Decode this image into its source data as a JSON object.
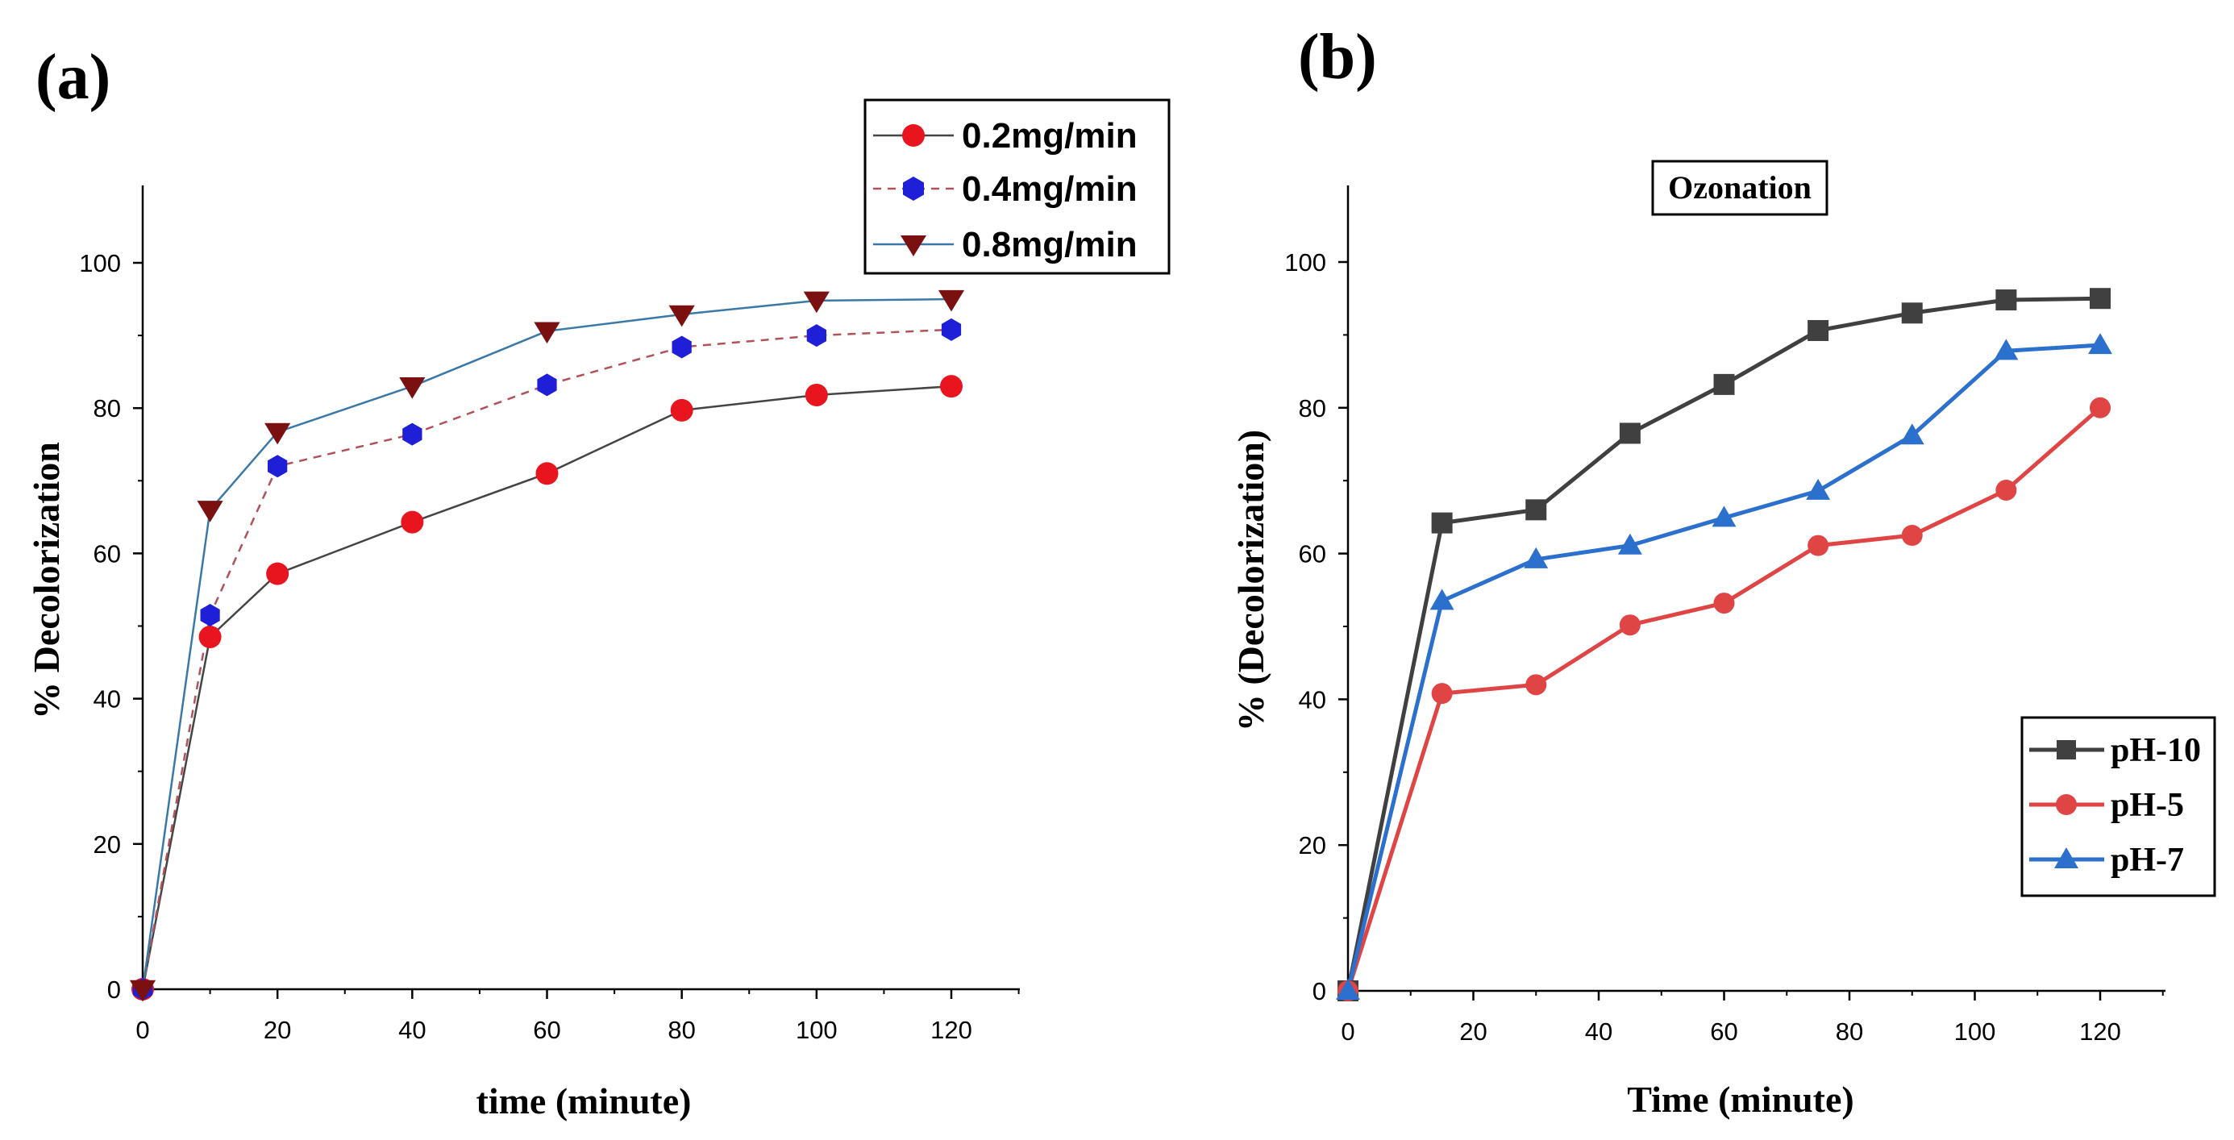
{
  "chart_data": [
    {
      "type": "line",
      "panel_label": "(a)",
      "title": "",
      "xlabel": "time (minute)",
      "ylabel": "% Decolorization",
      "xlim": [
        0,
        130
      ],
      "ylim": [
        0,
        110
      ],
      "xticks": [
        0,
        20,
        40,
        60,
        80,
        100,
        120
      ],
      "yticks": [
        0,
        20,
        40,
        60,
        80,
        100
      ],
      "x": [
        0,
        10,
        20,
        40,
        60,
        80,
        100,
        120
      ],
      "legend_position": "top-right",
      "series": [
        {
          "name": "0.2mg/min",
          "marker": "circle",
          "marker_color": "#e8141e",
          "line_color": "#444444",
          "line_style": "solid",
          "values": [
            0,
            48.5,
            57.2,
            64.3,
            71.0,
            79.7,
            81.8,
            83.0
          ]
        },
        {
          "name": "0.4mg/min",
          "marker": "hexagon",
          "marker_color": "#1f1fd8",
          "line_color": "#b0525a",
          "line_style": "dashed",
          "values": [
            0,
            51.5,
            72.0,
            76.4,
            83.2,
            88.4,
            90.0,
            90.8
          ]
        },
        {
          "name": "0.8mg/min",
          "marker": "triangle-down",
          "marker_color": "#7a1010",
          "line_color": "#3a78a8",
          "line_style": "solid",
          "values": [
            0,
            66.0,
            76.7,
            83.0,
            90.6,
            92.9,
            94.8,
            95.0
          ]
        }
      ]
    },
    {
      "type": "line",
      "panel_label": "(b)",
      "title": "Ozonation",
      "xlabel": "Time (minute)",
      "ylabel": "% (Decolorization)",
      "xlim": [
        0,
        130
      ],
      "ylim": [
        0,
        110
      ],
      "xticks": [
        0,
        20,
        40,
        60,
        80,
        100,
        120
      ],
      "yticks": [
        0,
        20,
        40,
        60,
        80,
        100
      ],
      "x": [
        0,
        15,
        30,
        45,
        60,
        75,
        90,
        105,
        120
      ],
      "legend_position": "bottom-right",
      "series": [
        {
          "name": "pH-10",
          "marker": "square",
          "marker_color": "#404040",
          "line_color": "#404040",
          "values": [
            0,
            64.2,
            66.0,
            76.5,
            83.2,
            90.6,
            93.0,
            94.8,
            95.0
          ]
        },
        {
          "name": "pH-5",
          "marker": "circle",
          "marker_color": "#e04545",
          "line_color": "#e04545",
          "values": [
            0,
            40.8,
            42.0,
            50.2,
            53.2,
            61.1,
            62.5,
            68.7,
            80.0
          ]
        },
        {
          "name": "pH-7",
          "marker": "triangle-up",
          "marker_color": "#2a70cc",
          "line_color": "#2a70cc",
          "values": [
            0,
            53.5,
            59.2,
            61.1,
            64.9,
            68.6,
            76.2,
            87.8,
            88.6
          ]
        }
      ]
    }
  ]
}
